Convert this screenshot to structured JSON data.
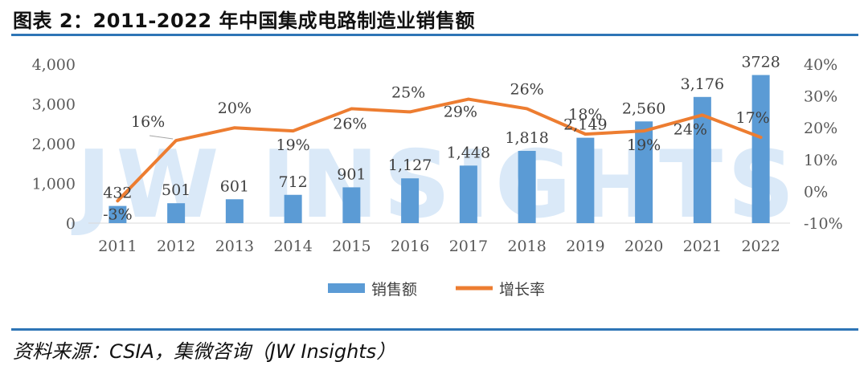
{
  "header": {
    "title": "图表 2：2011-2022 年中国集成电路制造业销售额"
  },
  "footer": {
    "source": "资料来源：CSIA，集微咨询（JW Insights）"
  },
  "watermark": "JW INSIGHTS",
  "colors": {
    "bar": "#5b9bd5",
    "line": "#ed7d31",
    "rule": "#2e75b6"
  },
  "chart_data": {
    "type": "bar",
    "categories": [
      "2011",
      "2012",
      "2013",
      "2014",
      "2015",
      "2016",
      "2017",
      "2018",
      "2019",
      "2020",
      "2021",
      "2022"
    ],
    "series": [
      {
        "name": "销售额",
        "type": "bar",
        "axis": "left",
        "values": [
          432,
          501,
          601,
          712,
          901,
          1127,
          1448,
          1818,
          2149,
          2560,
          3176,
          3728
        ],
        "labels": [
          "432",
          "501",
          "601",
          "712",
          "901",
          "1,127",
          "1,448",
          "1,818",
          "2,149",
          "2,560",
          "3,176",
          "3728"
        ]
      },
      {
        "name": "增长率",
        "type": "line",
        "axis": "right",
        "values": [
          -3,
          16,
          20,
          19,
          26,
          25,
          29,
          26,
          18,
          19,
          24,
          17
        ],
        "labels": [
          "-3%",
          "16%",
          "20%",
          "19%",
          "26%",
          "25%",
          "29%",
          "26%",
          "18%",
          "19%",
          "24%",
          "17%"
        ]
      }
    ],
    "ylim_left": [
      0,
      4000
    ],
    "yticks_left": [
      "0",
      "1,000",
      "2,000",
      "3,000",
      "4,000"
    ],
    "ylim_right": [
      -10,
      40
    ],
    "yticks_right": [
      "-10%",
      "0%",
      "10%",
      "20%",
      "30%",
      "40%"
    ],
    "legend": "bottom",
    "grid": false
  }
}
